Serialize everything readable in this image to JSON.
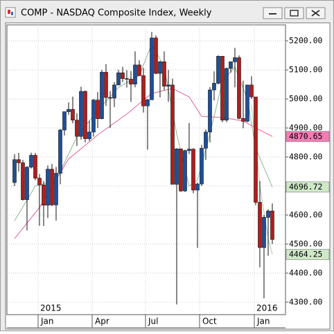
{
  "chart_data": {
    "type": "candlestick",
    "title": "COMP - NASDAQ Composite Index, Weekly",
    "x": [
      0,
      1,
      2,
      3,
      4,
      5,
      6,
      7,
      8,
      9,
      10,
      11,
      12,
      13,
      14,
      15,
      16,
      17,
      18,
      19,
      20,
      21,
      22,
      23,
      24,
      25,
      26,
      27,
      28,
      29,
      30,
      31,
      32,
      33,
      34,
      35,
      36,
      37,
      38,
      39,
      40,
      41,
      42,
      43,
      44,
      45,
      46,
      47,
      48,
      49,
      50,
      51,
      52,
      53,
      54,
      55,
      56,
      57,
      58,
      59,
      60,
      61,
      62
    ],
    "open": [
      4712,
      4791,
      4780,
      4653,
      4765,
      4806,
      4727,
      4704,
      4634,
      4758,
      4635,
      4744,
      4893,
      4956,
      4964,
      4927,
      4871,
      5026,
      4863,
      4886,
      4996,
      4932,
      5092,
      5005,
      5003,
      5048,
      5090,
      5070,
      5068,
      5051,
      5117,
      5080,
      4976,
      4997,
      5210,
      5088,
      5128,
      5044,
      5048,
      4706,
      4828,
      4683,
      4822,
      4827,
      4686,
      4707,
      4830,
      4886,
      5031,
      5054,
      5147,
      4927,
      5105,
      5128,
      5142,
      4933,
      4923,
      5048,
      5007,
      4644,
      4488,
      4592,
      4614
    ],
    "high": [
      4810,
      4814,
      4790,
      4768,
      4815,
      4814,
      4741,
      4717,
      4771,
      4776,
      4766,
      4896,
      4956,
      4988,
      5008,
      4951,
      5042,
      5029,
      4925,
      5000,
      5024,
      5100,
      5120,
      5027,
      5058,
      5100,
      5111,
      5099,
      5096,
      5164,
      5133,
      5107,
      5000,
      5231,
      5219,
      5130,
      5164,
      5100,
      5070,
      4830,
      4828,
      4825,
      4917,
      4830,
      4712,
      4842,
      4895,
      5041,
      5095,
      5150,
      5148,
      5108,
      5129,
      5176,
      5150,
      5063,
      5049,
      5078,
      5007,
      4717,
      4600,
      4620,
      4640
    ],
    "low": [
      4700,
      4750,
      4650,
      4547,
      4760,
      4720,
      4563,
      4562,
      4590,
      4631,
      4581,
      4706,
      4874,
      4945,
      4916,
      4838,
      4860,
      4850,
      4855,
      4870,
      4900,
      4930,
      4976,
      4900,
      4972,
      5048,
      5058,
      5039,
      4990,
      5040,
      5080,
      4953,
      4825,
      4997,
      5085,
      5005,
      5030,
      4990,
      4706,
      4292,
      4680,
      4680,
      4810,
      4675,
      4487,
      4700,
      4790,
      4850,
      4995,
      5050,
      4920,
      4920,
      5090,
      5040,
      4930,
      4899,
      4920,
      5000,
      4634,
      4420,
      4313,
      4460,
      4500
    ],
    "close": [
      4791,
      4780,
      4653,
      4765,
      4806,
      4727,
      4704,
      4634,
      4758,
      4635,
      4744,
      4893,
      4956,
      4964,
      4927,
      4871,
      5026,
      4863,
      4886,
      4996,
      4932,
      5092,
      5005,
      5003,
      5048,
      5090,
      5070,
      5068,
      5051,
      5117,
      5080,
      4976,
      4997,
      5210,
      5088,
      5128,
      5044,
      5048,
      4706,
      4828,
      4683,
      4822,
      4827,
      4686,
      4707,
      4830,
      4886,
      5031,
      5054,
      5147,
      4927,
      5105,
      5128,
      5142,
      4933,
      4923,
      5048,
      5007,
      4644,
      4488,
      4592,
      4614,
      4516
    ],
    "up_color": "#1f4f9c",
    "down_color": "#b01e1e",
    "lines": [
      {
        "color": "#e0609a",
        "x": [
          0,
          6,
          13,
          20,
          27,
          33,
          38,
          42,
          45,
          50,
          55,
          58,
          62
        ],
        "values": [
          4519,
          4626,
          4793,
          4876,
          4948,
          5019,
          5036,
          5007,
          4940,
          4936,
          4924,
          4900,
          4870.65
        ]
      },
      {
        "color": "#8fb58f",
        "x": [
          0,
          5,
          10,
          15,
          20,
          25,
          30,
          33,
          36,
          39,
          42,
          44,
          47,
          50,
          53,
          56,
          58,
          62
        ],
        "values": [
          4580,
          4700,
          4720,
          4870,
          4960,
          5040,
          5080,
          5190,
          5110,
          4880,
          4700,
          4720,
          4880,
          5060,
          5110,
          5000,
          4830,
          4696.72
        ]
      },
      {
        "color": "#b0c8b0",
        "x": [
          57,
          59,
          61,
          62
        ],
        "values": [
          4980,
          4700,
          4520,
          4464.25
        ]
      }
    ],
    "price_labels": [
      {
        "value": 4870.65,
        "color": "#f27db4"
      },
      {
        "value": 4696.72,
        "color": "#cfe8c8"
      },
      {
        "value": 4464.25,
        "color": "#cfe8c8"
      }
    ],
    "xlim": [
      -1.83,
      65.17
    ],
    "ylim": [
      4257,
      5255
    ],
    "yticks": [
      {
        "value": 5200,
        "label": "5200.00"
      },
      {
        "value": 5100,
        "label": "5100.00"
      },
      {
        "value": 5000,
        "label": "5000.00"
      },
      {
        "value": 4900,
        "label": "4900.00"
      },
      {
        "value": 4800,
        "label": "4800.00"
      },
      {
        "value": 4700,
        "label": "4700.00"
      },
      {
        "value": 4600,
        "label": "4600.00"
      },
      {
        "value": 4500,
        "label": "4500.00"
      },
      {
        "value": 4400,
        "label": "4400.00"
      },
      {
        "value": 4300,
        "label": "4300.00"
      }
    ],
    "xticks": [
      {
        "value": 5.67,
        "label": "Jan"
      },
      {
        "value": 18.67,
        "label": "Apr"
      },
      {
        "value": 31.5,
        "label": "Jul"
      },
      {
        "value": 44.5,
        "label": "Oct"
      },
      {
        "value": 57.67,
        "label": "Jan"
      }
    ],
    "year_labels": [
      {
        "value": 5.67,
        "label": "2015"
      },
      {
        "value": 57.67,
        "label": "2016"
      }
    ],
    "grid": true
  }
}
